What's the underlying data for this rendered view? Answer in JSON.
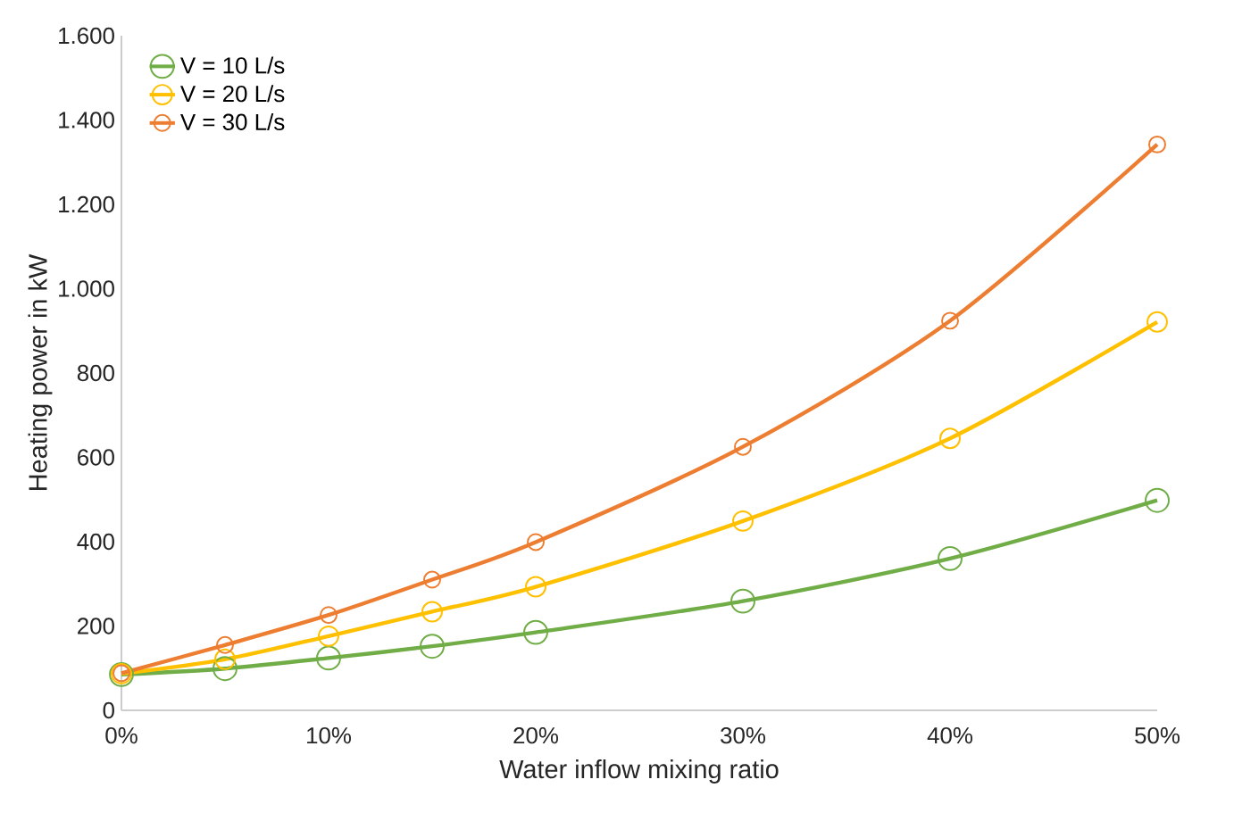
{
  "chart_data": {
    "type": "line",
    "xlabel": "Water inflow mixing ratio",
    "ylabel": "Heating power in kW",
    "x": [
      0,
      5,
      10,
      15,
      20,
      30,
      40,
      50
    ],
    "series": [
      {
        "name": "V = 10 L/s",
        "color": "#70ad47",
        "values": [
          85,
          99,
          124,
          152,
          185,
          259,
          360,
          498
        ]
      },
      {
        "name": "V = 20 L/s",
        "color": "#ffc000",
        "values": [
          87,
          121,
          176,
          234,
          293,
          449,
          645,
          921
        ]
      },
      {
        "name": "V = 30 L/s",
        "color": "#ed7d31",
        "values": [
          88,
          155,
          226,
          310,
          399,
          625,
          924,
          1342
        ]
      }
    ],
    "xlim": [
      0,
      50
    ],
    "xticks": [
      {
        "value": 0,
        "label": "0%"
      },
      {
        "value": 10,
        "label": "10%"
      },
      {
        "value": 20,
        "label": "20%"
      },
      {
        "value": 30,
        "label": "30%"
      },
      {
        "value": 40,
        "label": "40%"
      },
      {
        "value": 50,
        "label": "50%"
      }
    ],
    "ylim": [
      0,
      1600
    ],
    "yticks": [
      0,
      200,
      400,
      600,
      800,
      {
        "value": 1000,
        "label": "1.000"
      },
      {
        "value": 1200,
        "label": "1.200"
      },
      {
        "value": 1400,
        "label": "1.400"
      },
      {
        "value": 1600,
        "label": "1.600"
      }
    ],
    "grid": false,
    "legend": "top left",
    "marker": "circle",
    "line_style": "solid"
  }
}
